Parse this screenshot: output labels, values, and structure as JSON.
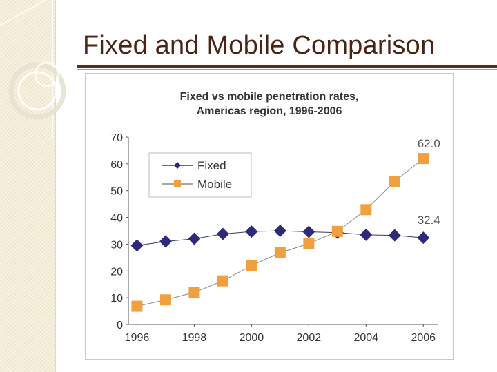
{
  "slide": {
    "title": "Fixed and Mobile Comparison"
  },
  "colors": {
    "title_text": "#4a2413",
    "title_rule": "#5b2c1a",
    "side_strip": "#f3ecd6",
    "fixed_series": "#2e2a7a",
    "mobile_series": "#f0a040"
  },
  "chart_data": {
    "type": "line",
    "title": "Fixed vs mobile penetration rates,",
    "subtitle": "Americas region, 1996-2006",
    "xlabel": "",
    "ylabel": "",
    "xlim": [
      1995.7,
      2006.5
    ],
    "ylim": [
      0,
      70
    ],
    "yticks": [
      0,
      10,
      20,
      30,
      40,
      50,
      60,
      70
    ],
    "xticks": [
      1996,
      1998,
      2000,
      2002,
      2004,
      2006
    ],
    "x": [
      1996,
      1997,
      1998,
      1999,
      2000,
      2001,
      2002,
      2003,
      2004,
      2005,
      2006
    ],
    "series": [
      {
        "name": "Fixed",
        "color": "#2e2a7a",
        "marker": "diamond",
        "values": [
          29.5,
          31.0,
          32.0,
          33.8,
          34.7,
          35.0,
          34.6,
          34.3,
          33.5,
          33.3,
          32.4
        ]
      },
      {
        "name": "Mobile",
        "color": "#f0a040",
        "marker": "square",
        "values": [
          6.8,
          9.2,
          12.0,
          16.3,
          22.0,
          26.8,
          30.2,
          34.8,
          42.9,
          53.5,
          62.0
        ]
      }
    ],
    "annotations": [
      {
        "text": "62.0",
        "series": "Mobile",
        "x": 2006
      },
      {
        "text": "32.4",
        "series": "Fixed",
        "x": 2006
      }
    ],
    "legend_position": "top-left",
    "grid": false
  }
}
